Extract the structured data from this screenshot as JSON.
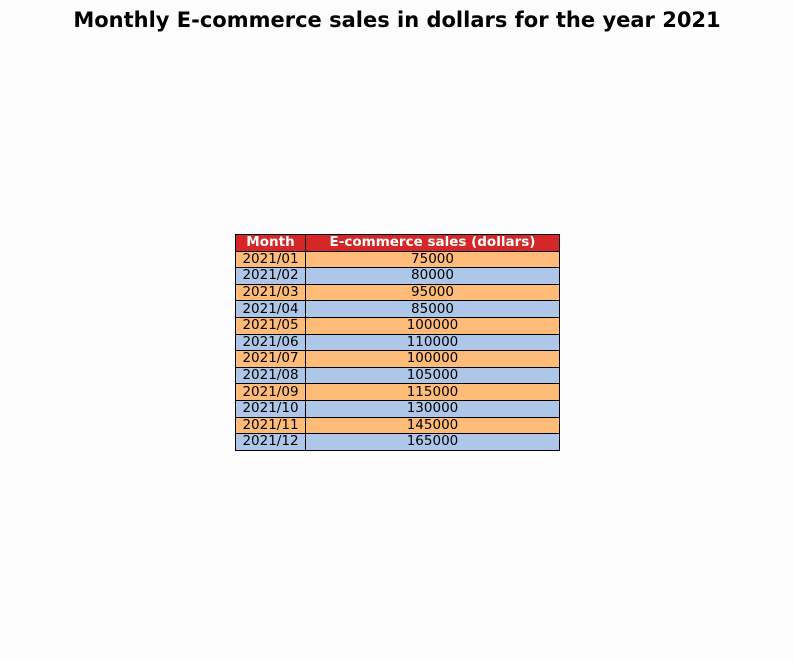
{
  "title": "Monthly E-commerce sales in dollars for the year 2021",
  "colors": {
    "header_bg": "#d62728",
    "row_odd": "#ffbb78",
    "row_even": "#aec7e8",
    "border": "#000000"
  },
  "chart_data": {
    "type": "table",
    "title": "Monthly E-commerce sales in dollars for the year 2021",
    "columns": [
      "Month",
      "E-commerce sales (dollars)"
    ],
    "rows": [
      [
        "2021/01",
        "75000"
      ],
      [
        "2021/02",
        "80000"
      ],
      [
        "2021/03",
        "95000"
      ],
      [
        "2021/04",
        "85000"
      ],
      [
        "2021/05",
        "100000"
      ],
      [
        "2021/06",
        "110000"
      ],
      [
        "2021/07",
        "100000"
      ],
      [
        "2021/08",
        "105000"
      ],
      [
        "2021/09",
        "115000"
      ],
      [
        "2021/10",
        "130000"
      ],
      [
        "2021/11",
        "145000"
      ],
      [
        "2021/12",
        "165000"
      ]
    ]
  }
}
